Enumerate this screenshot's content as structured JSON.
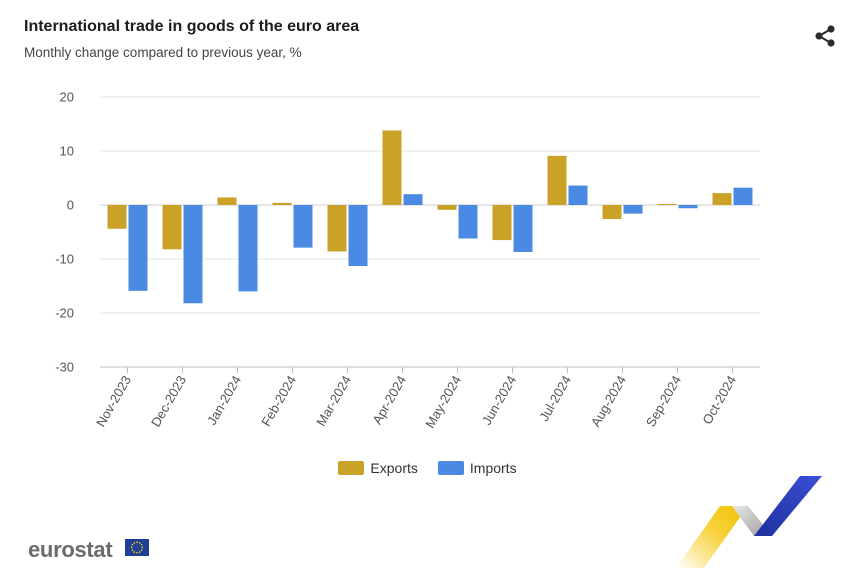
{
  "header": {
    "title": "International trade in goods of the euro area",
    "subtitle": "Monthly change compared to previous year, %",
    "share_icon": "share-icon"
  },
  "brand": {
    "logo_text": "eurostat",
    "flag_icon": "eu-flag-icon"
  },
  "colors": {
    "exports": "#c9a227",
    "imports": "#4a8ae3",
    "grid": "#e6e6e6",
    "axis": "#bfbfbf"
  },
  "legend": {
    "exports_label": "Exports",
    "imports_label": "Imports"
  },
  "chart_data": {
    "type": "bar",
    "title": "International trade in goods of the euro area",
    "subtitle": "Monthly change compared to previous year, %",
    "xlabel": "",
    "ylabel": "",
    "categories": [
      "Nov-2023",
      "Dec-2023",
      "Jan-2024",
      "Feb-2024",
      "Mar-2024",
      "Apr-2024",
      "May-2024",
      "Jun-2024",
      "Jul-2024",
      "Aug-2024",
      "Sep-2024",
      "Oct-2024"
    ],
    "series": [
      {
        "name": "Exports",
        "values": [
          -4.4,
          -8.2,
          1.4,
          0.4,
          -8.6,
          13.8,
          -0.9,
          -6.5,
          9.1,
          -2.6,
          0.2,
          2.2
        ]
      },
      {
        "name": "Imports",
        "values": [
          -15.9,
          -18.2,
          -16.0,
          -7.9,
          -11.3,
          2.0,
          -6.2,
          -8.7,
          3.6,
          -1.6,
          -0.6,
          3.2
        ]
      }
    ],
    "yticks": [
      20,
      10,
      0,
      -10,
      -20,
      -30
    ],
    "ylim": [
      -30,
      20
    ],
    "grid": true,
    "legend_position": "bottom-center"
  }
}
